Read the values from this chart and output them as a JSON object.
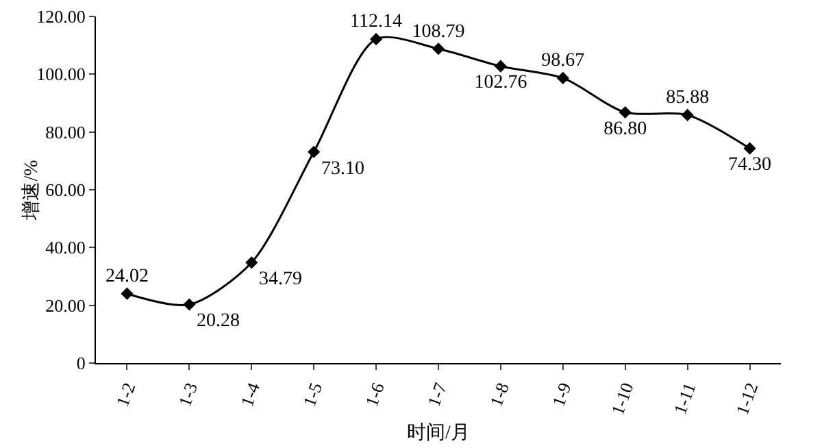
{
  "chart_data": {
    "type": "line",
    "xlabel": "时间/月",
    "ylabel": "增速/%",
    "categories": [
      "1-2",
      "1-3",
      "1-4",
      "1-5",
      "1-6",
      "1-7",
      "1-8",
      "1-9",
      "1-10",
      "1-11",
      "1-12"
    ],
    "series": [
      {
        "color": "#000000",
        "values": [
          24.02,
          20.28,
          34.79,
          73.1,
          112.14,
          108.79,
          102.76,
          98.67,
          86.8,
          85.88,
          74.3
        ]
      }
    ],
    "ylim": [
      0,
      120
    ],
    "yticks": [
      {
        "value": 0,
        "label": "0"
      },
      {
        "value": 20,
        "label": "20.00"
      },
      {
        "value": 40,
        "label": "40.00"
      },
      {
        "value": 60,
        "label": "60.00"
      },
      {
        "value": 80,
        "label": "80.00"
      },
      {
        "value": 100,
        "label": "100.00"
      },
      {
        "value": 120,
        "label": "120.00"
      }
    ],
    "value_labels": [
      "24.02",
      "20.28",
      "34.79",
      "73.10",
      "112.14",
      "108.79",
      "102.76",
      "98.67",
      "86.80",
      "85.88",
      "74.30"
    ],
    "grid": false,
    "legend": false,
    "marker": "diamond",
    "line_style": "solid"
  }
}
